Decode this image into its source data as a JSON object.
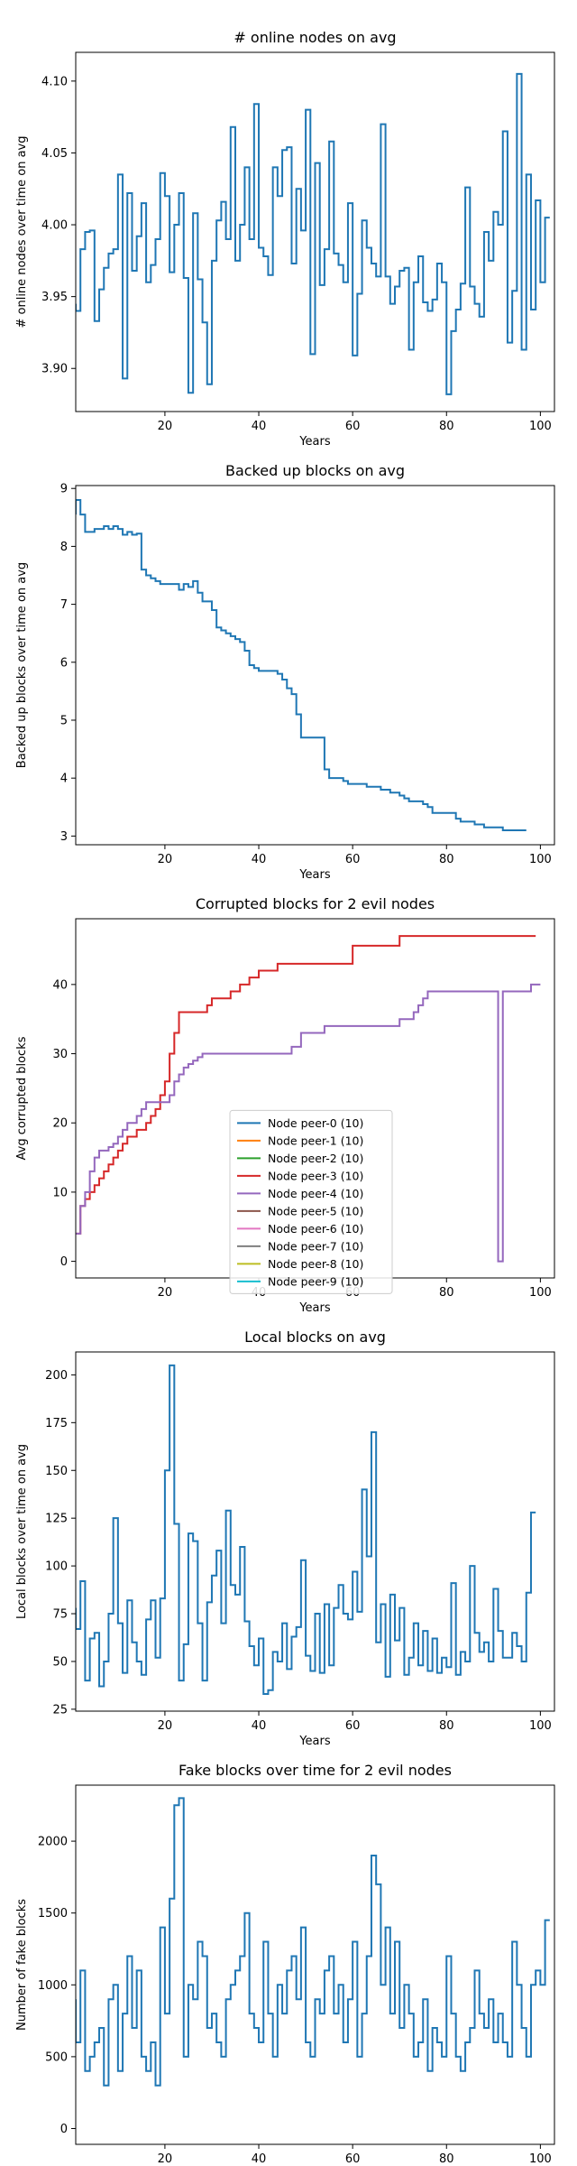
{
  "charts": [
    {
      "type": "line",
      "step": true,
      "title": "# online nodes on avg",
      "xlabel": "Years",
      "ylabel": "# online nodes over time on avg",
      "xlim": [
        1,
        103
      ],
      "ylim": [
        3.87,
        4.12
      ],
      "xticks": [
        20,
        40,
        60,
        80,
        100
      ],
      "yticks": [
        3.9,
        3.95,
        4.0,
        4.05,
        4.1
      ],
      "ytick_labels": [
        "3.90",
        "3.95",
        "4.00",
        "4.05",
        "4.10"
      ],
      "series": [
        {
          "color": "#1f77b4",
          "values": [
            3.945,
            3.94,
            3.983,
            3.995,
            3.996,
            3.933,
            3.955,
            3.97,
            3.98,
            3.983,
            4.035,
            3.893,
            4.022,
            3.968,
            3.992,
            4.015,
            3.96,
            3.972,
            3.99,
            4.036,
            4.02,
            3.967,
            4.0,
            4.022,
            3.963,
            3.883,
            4.008,
            3.962,
            3.932,
            3.889,
            3.975,
            4.003,
            4.016,
            3.99,
            4.068,
            3.975,
            4.0,
            4.04,
            3.99,
            4.084,
            3.984,
            3.978,
            3.965,
            4.04,
            4.02,
            4.052,
            4.054,
            3.973,
            4.025,
            3.996,
            4.08,
            3.91,
            4.043,
            3.958,
            3.983,
            4.058,
            3.98,
            3.972,
            3.96,
            4.015,
            3.909,
            3.952,
            4.003,
            3.984,
            3.973,
            3.964,
            4.07,
            3.964,
            3.945,
            3.957,
            3.968,
            3.97,
            3.913,
            3.96,
            3.978,
            3.946,
            3.94,
            3.948,
            3.973,
            3.96,
            3.882,
            3.926,
            3.941,
            3.959,
            4.026,
            3.957,
            3.945,
            3.936,
            3.995,
            3.975,
            4.009,
            4.0,
            4.065,
            3.918,
            3.954,
            4.105,
            3.913,
            4.035,
            3.941,
            4.017,
            3.96,
            4.005
          ]
        }
      ]
    },
    {
      "type": "line",
      "step": true,
      "title": "Backed up blocks on avg",
      "xlabel": "Years",
      "ylabel": "Backed up blocks over time on avg",
      "xlim": [
        1,
        103
      ],
      "ylim": [
        2.85,
        9.05
      ],
      "xticks": [
        20,
        40,
        60,
        80,
        100
      ],
      "yticks": [
        3,
        4,
        5,
        6,
        7,
        8,
        9
      ],
      "ytick_labels": [
        "3",
        "4",
        "5",
        "6",
        "7",
        "8",
        "9"
      ],
      "series": [
        {
          "color": "#1f77b4",
          "values": [
            8.55,
            8.8,
            8.55,
            8.25,
            8.25,
            8.3,
            8.3,
            8.35,
            8.3,
            8.35,
            8.3,
            8.2,
            8.25,
            8.2,
            8.22,
            7.6,
            7.5,
            7.45,
            7.4,
            7.35,
            7.35,
            7.35,
            7.35,
            7.25,
            7.35,
            7.3,
            7.4,
            7.2,
            7.05,
            7.05,
            6.9,
            6.6,
            6.55,
            6.5,
            6.45,
            6.4,
            6.35,
            6.2,
            5.95,
            5.9,
            5.85,
            5.85,
            5.85,
            5.85,
            5.8,
            5.7,
            5.55,
            5.45,
            5.1,
            4.7,
            4.7,
            4.7,
            4.7,
            4.7,
            4.15,
            4.0,
            4.0,
            4.0,
            3.95,
            3.9,
            3.9,
            3.9,
            3.9,
            3.85,
            3.85,
            3.85,
            3.8,
            3.8,
            3.75,
            3.75,
            3.7,
            3.65,
            3.6,
            3.6,
            3.6,
            3.55,
            3.5,
            3.4,
            3.4,
            3.4,
            3.4,
            3.4,
            3.3,
            3.25,
            3.25,
            3.25,
            3.2,
            3.2,
            3.15,
            3.15,
            3.15,
            3.15,
            3.1,
            3.1,
            3.1,
            3.1,
            3.1
          ]
        }
      ]
    },
    {
      "type": "line",
      "step": true,
      "title": "Corrupted blocks for 2 evil nodes",
      "xlabel": "Years",
      "ylabel": "Avg corrupted blocks",
      "xlim": [
        1,
        103
      ],
      "ylim": [
        -2.4,
        49.5
      ],
      "xticks": [
        20,
        40,
        60,
        80,
        100
      ],
      "yticks": [
        0,
        10,
        20,
        30,
        40
      ],
      "ytick_labels": [
        "0",
        "10",
        "20",
        "30",
        "40"
      ],
      "legend_loc": "center",
      "legend": [
        {
          "name": "Node peer-0 (10)",
          "color": "#1f77b4"
        },
        {
          "name": "Node peer-1 (10)",
          "color": "#ff7f0e"
        },
        {
          "name": "Node peer-2 (10)",
          "color": "#2ca02c"
        },
        {
          "name": "Node peer-3 (10)",
          "color": "#d62728"
        },
        {
          "name": "Node peer-4 (10)",
          "color": "#9467bd"
        },
        {
          "name": "Node peer-5 (10)",
          "color": "#8c564b"
        },
        {
          "name": "Node peer-6 (10)",
          "color": "#e377c2"
        },
        {
          "name": "Node peer-7 (10)",
          "color": "#7f7f7f"
        },
        {
          "name": "Node peer-8 (10)",
          "color": "#bcbd22"
        },
        {
          "name": "Node peer-9 (10)",
          "color": "#17becf"
        }
      ],
      "series": [
        {
          "color": "#d62728",
          "values": [
            4,
            4,
            8,
            9,
            10,
            11,
            12,
            13,
            14,
            15,
            16,
            17,
            18,
            18,
            19,
            19,
            20,
            21,
            22,
            24,
            26,
            30,
            33,
            36,
            36,
            36,
            36,
            36,
            36,
            37,
            38,
            38,
            38,
            38,
            39,
            39,
            40,
            40,
            41,
            41,
            42,
            42,
            42,
            42,
            43,
            43,
            43,
            43,
            43,
            43,
            43,
            43,
            43,
            43,
            43,
            43,
            43,
            43,
            43,
            43,
            45.6,
            45.6,
            45.6,
            45.6,
            45.6,
            45.6,
            45.6,
            45.6,
            45.6,
            45.6,
            47,
            47,
            47,
            47,
            47,
            47,
            47,
            47,
            47,
            47,
            47,
            47,
            47,
            47,
            47,
            47,
            47,
            47,
            47,
            47,
            47,
            47,
            47,
            47,
            47,
            47,
            47,
            47,
            47
          ]
        },
        {
          "color": "#9467bd",
          "values": [
            4,
            4,
            8,
            10,
            13,
            15,
            16,
            16,
            16.5,
            17,
            18,
            19,
            20,
            20,
            21,
            22,
            23,
            23,
            23,
            23,
            23,
            24,
            26,
            27,
            28,
            28.5,
            29,
            29.5,
            30,
            30,
            30,
            30,
            30,
            30,
            30,
            30,
            30,
            30,
            30,
            30,
            30,
            30,
            30,
            30,
            30,
            30,
            30,
            31,
            31,
            33,
            33,
            33,
            33,
            33,
            34,
            34,
            34,
            34,
            34,
            34,
            34,
            34,
            34,
            34,
            34,
            34,
            34,
            34,
            34,
            34,
            35,
            35,
            35,
            36,
            37,
            38,
            39,
            39,
            39,
            39,
            39,
            39,
            39,
            39,
            39,
            39,
            39,
            39,
            39,
            39,
            39,
            0,
            39,
            39,
            39,
            39,
            39,
            39,
            40,
            40
          ]
        }
      ]
    },
    {
      "type": "line",
      "step": true,
      "title": "Local blocks on avg",
      "xlabel": "Years",
      "ylabel": "Local blocks over time on avg",
      "xlim": [
        1,
        103
      ],
      "ylim": [
        24,
        212
      ],
      "xticks": [
        20,
        40,
        60,
        80,
        100
      ],
      "yticks": [
        25,
        50,
        75,
        100,
        125,
        150,
        175,
        200
      ],
      "ytick_labels": [
        "25",
        "50",
        "75",
        "100",
        "125",
        "150",
        "175",
        "200"
      ],
      "series": [
        {
          "color": "#1f77b4",
          "values": [
            78,
            67,
            92,
            40,
            62,
            65,
            37,
            50,
            75,
            125,
            70,
            44,
            82,
            60,
            50,
            43,
            72,
            82,
            52,
            83,
            150,
            205,
            122,
            40,
            59,
            117,
            113,
            70,
            40,
            81,
            95,
            108,
            70,
            129,
            90,
            85,
            110,
            71,
            58,
            48,
            62,
            33,
            35,
            55,
            50,
            70,
            46,
            63,
            68,
            103,
            53,
            45,
            75,
            44,
            80,
            48,
            78,
            90,
            75,
            72,
            97,
            76,
            140,
            105,
            170,
            60,
            80,
            42,
            85,
            61,
            78,
            43,
            52,
            70,
            48,
            66,
            45,
            62,
            44,
            52,
            47,
            91,
            43,
            55,
            50,
            100,
            65,
            55,
            60,
            50,
            88,
            66,
            52,
            52,
            65,
            58,
            50,
            86,
            128
          ]
        }
      ]
    },
    {
      "type": "line",
      "step": true,
      "title": "Fake blocks over time for 2 evil nodes",
      "xlabel": "Years",
      "ylabel": "Number of fake blocks",
      "xlim": [
        1,
        103
      ],
      "ylim": [
        -110,
        2390
      ],
      "xticks": [
        20,
        40,
        60,
        80,
        100
      ],
      "yticks": [
        0,
        500,
        1000,
        1500,
        2000
      ],
      "ytick_labels": [
        "0",
        "500",
        "1000",
        "1500",
        "2000"
      ],
      "series": [
        {
          "color": "#1f77b4",
          "values": [
            900,
            600,
            1100,
            400,
            500,
            600,
            700,
            300,
            900,
            1000,
            400,
            800,
            1200,
            700,
            1100,
            500,
            400,
            600,
            300,
            1400,
            800,
            1600,
            2250,
            2300,
            500,
            1000,
            900,
            1300,
            1200,
            700,
            800,
            600,
            500,
            900,
            1000,
            1100,
            1200,
            1500,
            800,
            700,
            600,
            1300,
            800,
            500,
            1000,
            800,
            1100,
            1200,
            900,
            1400,
            600,
            500,
            900,
            800,
            1100,
            1200,
            800,
            1000,
            600,
            900,
            1300,
            500,
            800,
            1200,
            1900,
            1700,
            1000,
            1400,
            800,
            1300,
            700,
            1000,
            800,
            500,
            600,
            900,
            400,
            700,
            600,
            500,
            1200,
            800,
            500,
            400,
            600,
            700,
            1100,
            800,
            700,
            900,
            600,
            800,
            600,
            500,
            1300,
            1000,
            700,
            500,
            1000,
            1100,
            1000,
            1450
          ]
        }
      ]
    }
  ]
}
